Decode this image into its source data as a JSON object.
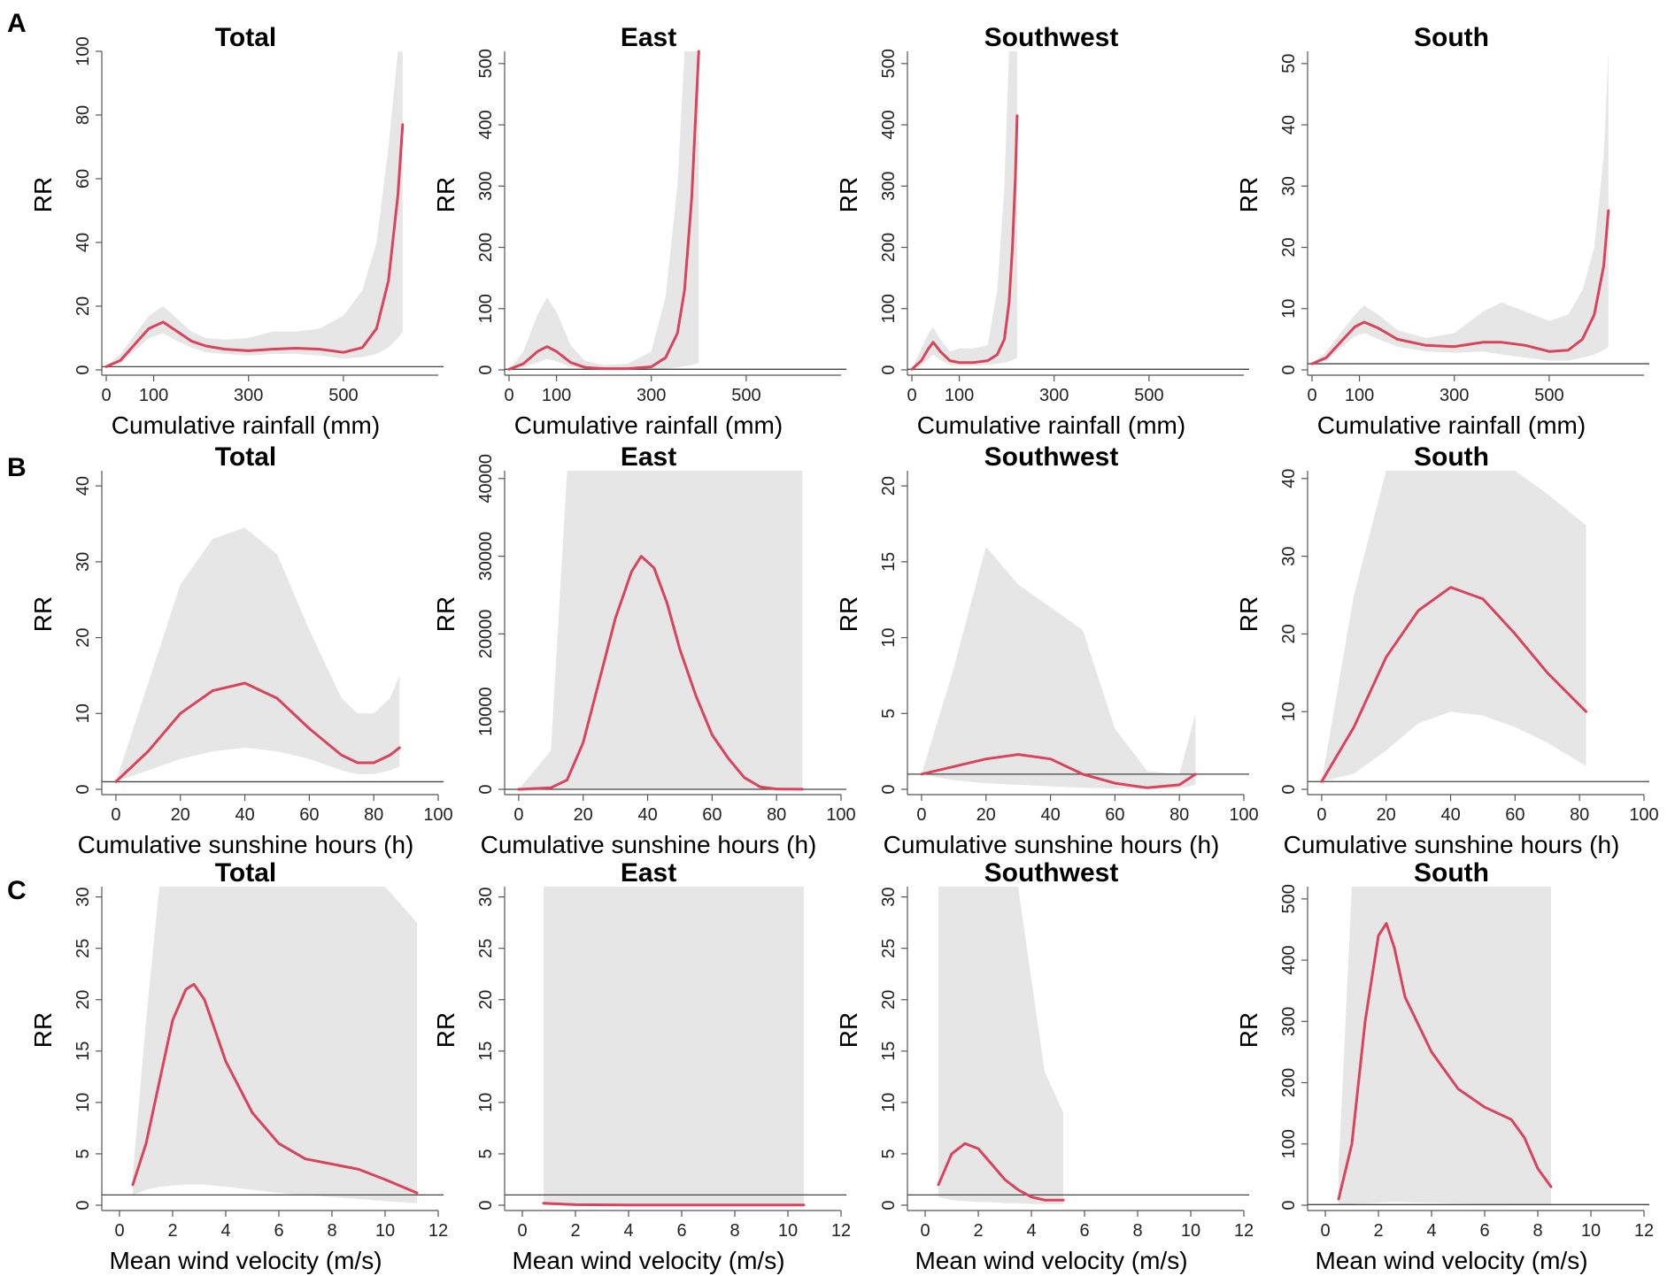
{
  "figure": {
    "row_labels": [
      "A",
      "B",
      "C"
    ],
    "colors": {
      "curve": "#d9445c",
      "band": "#e6e6e6",
      "axis": "#555555",
      "ref": "#444444"
    }
  },
  "chart_data": [
    {
      "type": "line",
      "row": "A",
      "title": "Total",
      "xlabel": "Cumulative rainfall (mm)",
      "ylabel": "RR",
      "xlim": [
        0,
        700
      ],
      "ylim": [
        0,
        100
      ],
      "xticks": [
        0,
        100,
        300,
        500
      ],
      "yticks": [
        0,
        20,
        40,
        60,
        80,
        100
      ],
      "ref_y": 1,
      "series": [
        {
          "name": "RR",
          "x": [
            0,
            30,
            60,
            90,
            120,
            150,
            180,
            210,
            250,
            300,
            350,
            400,
            450,
            500,
            540,
            570,
            595,
            615,
            625
          ],
          "values": [
            1,
            3,
            8,
            13,
            15,
            12,
            9,
            7.5,
            6.5,
            6,
            6.5,
            6.8,
            6.5,
            5.5,
            7,
            13,
            28,
            55,
            77
          ],
          "lower": [
            1,
            2,
            6,
            10,
            11.5,
            9,
            7,
            5.5,
            5,
            4.5,
            5,
            5,
            4.5,
            3.5,
            4,
            5,
            7,
            10,
            12
          ],
          "upper": [
            1,
            5,
            11,
            17,
            20,
            16,
            12,
            10,
            9.5,
            10,
            12,
            12,
            13,
            17,
            25,
            40,
            70,
            105,
            105
          ]
        }
      ]
    },
    {
      "type": "line",
      "row": "A",
      "title": "East",
      "xlabel": "Cumulative rainfall (mm)",
      "ylabel": "RR",
      "xlim": [
        0,
        700
      ],
      "ylim": [
        0,
        520
      ],
      "xticks": [
        0,
        100,
        300,
        500
      ],
      "yticks": [
        0,
        100,
        200,
        300,
        400,
        500
      ],
      "ref_y": 1,
      "series": [
        {
          "name": "RR",
          "x": [
            0,
            30,
            60,
            80,
            100,
            130,
            160,
            200,
            250,
            300,
            330,
            355,
            370,
            385,
            395,
            400
          ],
          "values": [
            1,
            10,
            30,
            38,
            30,
            12,
            4,
            2,
            2,
            5,
            20,
            60,
            130,
            280,
            440,
            520
          ],
          "lower": [
            1,
            4,
            12,
            18,
            14,
            5,
            2,
            1,
            1,
            1,
            2,
            4,
            6,
            8,
            10,
            12
          ],
          "upper": [
            1,
            30,
            90,
            118,
            95,
            40,
            15,
            8,
            10,
            30,
            120,
            300,
            520,
            520,
            520,
            520
          ]
        }
      ]
    },
    {
      "type": "line",
      "row": "A",
      "title": "Southwest",
      "xlabel": "Cumulative rainfall (mm)",
      "ylabel": "RR",
      "xlim": [
        0,
        700
      ],
      "ylim": [
        0,
        520
      ],
      "xticks": [
        0,
        100,
        300,
        500
      ],
      "yticks": [
        0,
        100,
        200,
        300,
        400,
        500
      ],
      "ref_y": 1,
      "series": [
        {
          "name": "RR",
          "x": [
            0,
            20,
            35,
            45,
            60,
            80,
            100,
            130,
            160,
            180,
            195,
            205,
            212,
            218,
            222
          ],
          "values": [
            1,
            15,
            35,
            45,
            30,
            15,
            12,
            12,
            15,
            25,
            50,
            110,
            200,
            310,
            415
          ],
          "lower": [
            1,
            6,
            18,
            25,
            16,
            8,
            7,
            7,
            8,
            10,
            12,
            14,
            16,
            18,
            20
          ],
          "upper": [
            1,
            35,
            60,
            70,
            50,
            30,
            35,
            35,
            40,
            130,
            300,
            520,
            520,
            520,
            520
          ]
        }
      ]
    },
    {
      "type": "line",
      "row": "A",
      "title": "South",
      "xlabel": "Cumulative rainfall (mm)",
      "ylabel": "RR",
      "xlim": [
        0,
        700
      ],
      "ylim": [
        0,
        52
      ],
      "xticks": [
        0,
        100,
        300,
        500
      ],
      "yticks": [
        0,
        10,
        20,
        30,
        40,
        50
      ],
      "ref_y": 1,
      "series": [
        {
          "name": "RR",
          "x": [
            0,
            30,
            60,
            90,
            110,
            140,
            180,
            240,
            300,
            360,
            400,
            450,
            500,
            540,
            570,
            595,
            615,
            625
          ],
          "values": [
            1,
            2,
            4.5,
            7,
            7.8,
            6.8,
            5,
            4,
            3.8,
            4.5,
            4.5,
            4,
            3,
            3.2,
            5,
            9,
            17,
            26
          ],
          "lower": [
            1,
            1.5,
            3.5,
            5.5,
            6,
            5,
            3.8,
            3,
            2.8,
            3,
            2.5,
            2,
            1.5,
            1.5,
            2,
            2.5,
            3.2,
            3.8
          ],
          "upper": [
            1,
            3,
            6,
            9,
            10.5,
            9,
            6.5,
            5.2,
            6,
            9.5,
            11,
            9.5,
            8,
            9,
            13,
            20,
            35,
            53
          ]
        }
      ]
    },
    {
      "type": "line",
      "row": "B",
      "title": "Total",
      "xlabel": "Cumulative sunshine hours (h)",
      "ylabel": "RR",
      "xlim": [
        -3,
        100
      ],
      "ylim": [
        0,
        42
      ],
      "xticks": [
        0,
        20,
        40,
        60,
        80,
        100
      ],
      "yticks": [
        0,
        10,
        20,
        30,
        40
      ],
      "ref_y": 1,
      "series": [
        {
          "name": "RR",
          "x": [
            0,
            10,
            20,
            30,
            40,
            50,
            60,
            70,
            75,
            80,
            85,
            88
          ],
          "values": [
            1,
            5,
            10,
            13,
            14,
            12,
            8,
            4.5,
            3.5,
            3.5,
            4.5,
            5.5
          ],
          "lower": [
            1,
            2.5,
            4,
            5,
            5.5,
            5,
            4,
            2.5,
            2,
            2,
            2.5,
            3
          ],
          "upper": [
            1,
            14,
            27,
            33,
            34.5,
            31,
            21,
            12,
            10,
            10,
            12,
            15
          ]
        }
      ]
    },
    {
      "type": "line",
      "row": "B",
      "title": "East",
      "xlabel": "Cumulative sunshine hours (h)",
      "ylabel": "RR",
      "xlim": [
        -3,
        100
      ],
      "ylim": [
        0,
        41000
      ],
      "xticks": [
        0,
        20,
        40,
        60,
        80,
        100
      ],
      "yticks": [
        0,
        10000,
        20000,
        30000,
        40000
      ],
      "ref_y": 0,
      "series": [
        {
          "name": "RR",
          "x": [
            0,
            10,
            15,
            20,
            25,
            30,
            35,
            38,
            42,
            46,
            50,
            55,
            60,
            65,
            70,
            75,
            80,
            88
          ],
          "values": [
            1,
            200,
            1200,
            6000,
            14000,
            22000,
            28000,
            30000,
            28500,
            24000,
            18000,
            12000,
            7000,
            4000,
            1500,
            300,
            50,
            10
          ],
          "lower": [
            1,
            1,
            1,
            1,
            1,
            1,
            1,
            1,
            1,
            1,
            1,
            1,
            1,
            1,
            1,
            1,
            1,
            1
          ],
          "upper": [
            1,
            5000,
            42000,
            42000,
            42000,
            42000,
            42000,
            42000,
            42000,
            42000,
            42000,
            42000,
            42000,
            42000,
            42000,
            42000,
            42000,
            42000
          ]
        }
      ]
    },
    {
      "type": "line",
      "row": "B",
      "title": "Southwest",
      "xlabel": "Cumulative sunshine hours (h)",
      "ylabel": "RR",
      "xlim": [
        -3,
        100
      ],
      "ylim": [
        0,
        21
      ],
      "xticks": [
        0,
        20,
        40,
        60,
        80,
        100
      ],
      "yticks": [
        0,
        5,
        10,
        15,
        20
      ],
      "ref_y": 1,
      "series": [
        {
          "name": "RR",
          "x": [
            0,
            10,
            20,
            30,
            40,
            50,
            60,
            70,
            80,
            85
          ],
          "values": [
            1,
            1.5,
            2,
            2.3,
            2,
            1,
            0.4,
            0.1,
            0.3,
            1
          ],
          "lower": [
            1,
            0.6,
            0.4,
            0.3,
            0.2,
            0.1,
            0.05,
            0.02,
            0.05,
            0.3
          ],
          "upper": [
            1,
            8,
            16,
            13.5,
            12,
            10.5,
            4,
            1.2,
            1,
            5
          ]
        }
      ]
    },
    {
      "type": "line",
      "row": "B",
      "title": "South",
      "xlabel": "Cumulative sunshine hours (h)",
      "ylabel": "RR",
      "xlim": [
        -3,
        100
      ],
      "ylim": [
        0,
        41
      ],
      "xticks": [
        0,
        20,
        40,
        60,
        80,
        100
      ],
      "yticks": [
        0,
        10,
        20,
        30,
        40
      ],
      "ref_y": 1,
      "series": [
        {
          "name": "RR",
          "x": [
            0,
            10,
            20,
            30,
            40,
            50,
            60,
            70,
            82
          ],
          "values": [
            1,
            8,
            17,
            23,
            26,
            24.5,
            20,
            15,
            10
          ],
          "lower": [
            1,
            2,
            5,
            8.5,
            10,
            9.5,
            8,
            6,
            3
          ],
          "upper": [
            1,
            25,
            41,
            41,
            41,
            41,
            41,
            38,
            34
          ]
        }
      ]
    },
    {
      "type": "line",
      "row": "C",
      "title": "Total",
      "xlabel": "Mean wind velocity (m/s)",
      "ylabel": "RR",
      "xlim": [
        -0.5,
        12
      ],
      "ylim": [
        0,
        31
      ],
      "xticks": [
        0,
        2,
        4,
        6,
        8,
        10,
        12
      ],
      "yticks": [
        0,
        5,
        10,
        15,
        20,
        25,
        30
      ],
      "ref_y": 1,
      "series": [
        {
          "name": "RR",
          "x": [
            0.5,
            1,
            1.5,
            2,
            2.5,
            2.8,
            3.2,
            4,
            5,
            6,
            7,
            8,
            9,
            10,
            11.2
          ],
          "values": [
            2,
            6,
            12,
            18,
            21,
            21.5,
            20,
            14,
            9,
            6,
            4.5,
            4,
            3.5,
            2.5,
            1.2
          ],
          "lower": [
            1,
            1.5,
            1.8,
            1.9,
            2,
            2,
            2,
            1.8,
            1.5,
            1.2,
            1,
            0.8,
            0.6,
            0.4,
            0.2
          ],
          "upper": [
            3,
            18,
            31,
            31,
            31,
            31,
            31,
            31,
            31,
            31,
            31,
            31,
            31,
            31,
            27.5
          ]
        }
      ]
    },
    {
      "type": "line",
      "row": "C",
      "title": "East",
      "xlabel": "Mean wind velocity (m/s)",
      "ylabel": "RR",
      "xlim": [
        -0.5,
        12
      ],
      "ylim": [
        0,
        31
      ],
      "xticks": [
        0,
        2,
        4,
        6,
        8,
        10,
        12
      ],
      "yticks": [
        0,
        5,
        10,
        15,
        20,
        25,
        30
      ],
      "ref_y": 1,
      "series": [
        {
          "name": "RR",
          "x": [
            0.8,
            2,
            4,
            6,
            8,
            10.6
          ],
          "values": [
            0.2,
            0.05,
            0.02,
            0.02,
            0.02,
            0.02
          ],
          "lower": [
            0,
            0,
            0,
            0,
            0,
            0
          ],
          "upper": [
            31,
            31,
            31,
            31,
            31,
            31
          ]
        }
      ]
    },
    {
      "type": "line",
      "row": "C",
      "title": "Southwest",
      "xlabel": "Mean wind velocity (m/s)",
      "ylabel": "RR",
      "xlim": [
        -0.5,
        12
      ],
      "ylim": [
        0,
        31
      ],
      "xticks": [
        0,
        2,
        4,
        6,
        8,
        10,
        12
      ],
      "yticks": [
        0,
        5,
        10,
        15,
        20,
        25,
        30
      ],
      "ref_y": 1,
      "series": [
        {
          "name": "RR",
          "x": [
            0.5,
            1,
            1.5,
            2,
            2.5,
            3,
            3.5,
            4,
            4.5,
            5.2
          ],
          "values": [
            2,
            5,
            6,
            5.5,
            4,
            2.5,
            1.5,
            0.8,
            0.5,
            0.5
          ],
          "lower": [
            0.8,
            0.5,
            0.4,
            0.3,
            0.3,
            0.2,
            0.2,
            0.1,
            0.1,
            0.1
          ],
          "upper": [
            31,
            31,
            31,
            31,
            31,
            31,
            31,
            22,
            13,
            9
          ]
        }
      ]
    },
    {
      "type": "line",
      "row": "C",
      "title": "South",
      "xlabel": "Mean wind velocity (m/s)",
      "ylabel": "RR",
      "xlim": [
        -0.5,
        12
      ],
      "ylim": [
        0,
        520
      ],
      "xticks": [
        0,
        2,
        4,
        6,
        8,
        10,
        12
      ],
      "yticks": [
        0,
        100,
        200,
        300,
        400,
        500
      ],
      "ref_y": 1,
      "series": [
        {
          "name": "RR",
          "x": [
            0.5,
            1,
            1.5,
            2,
            2.3,
            2.6,
            3,
            4,
            5,
            6,
            7,
            7.5,
            8,
            8.5
          ],
          "values": [
            10,
            100,
            300,
            440,
            460,
            420,
            340,
            250,
            190,
            160,
            140,
            110,
            60,
            30
          ],
          "lower": [
            1,
            2,
            3,
            4,
            5,
            5,
            5,
            4,
            3,
            2,
            2,
            1,
            1,
            1
          ],
          "upper": [
            60,
            520,
            520,
            520,
            520,
            520,
            520,
            520,
            520,
            520,
            520,
            520,
            520,
            520
          ]
        }
      ]
    }
  ]
}
